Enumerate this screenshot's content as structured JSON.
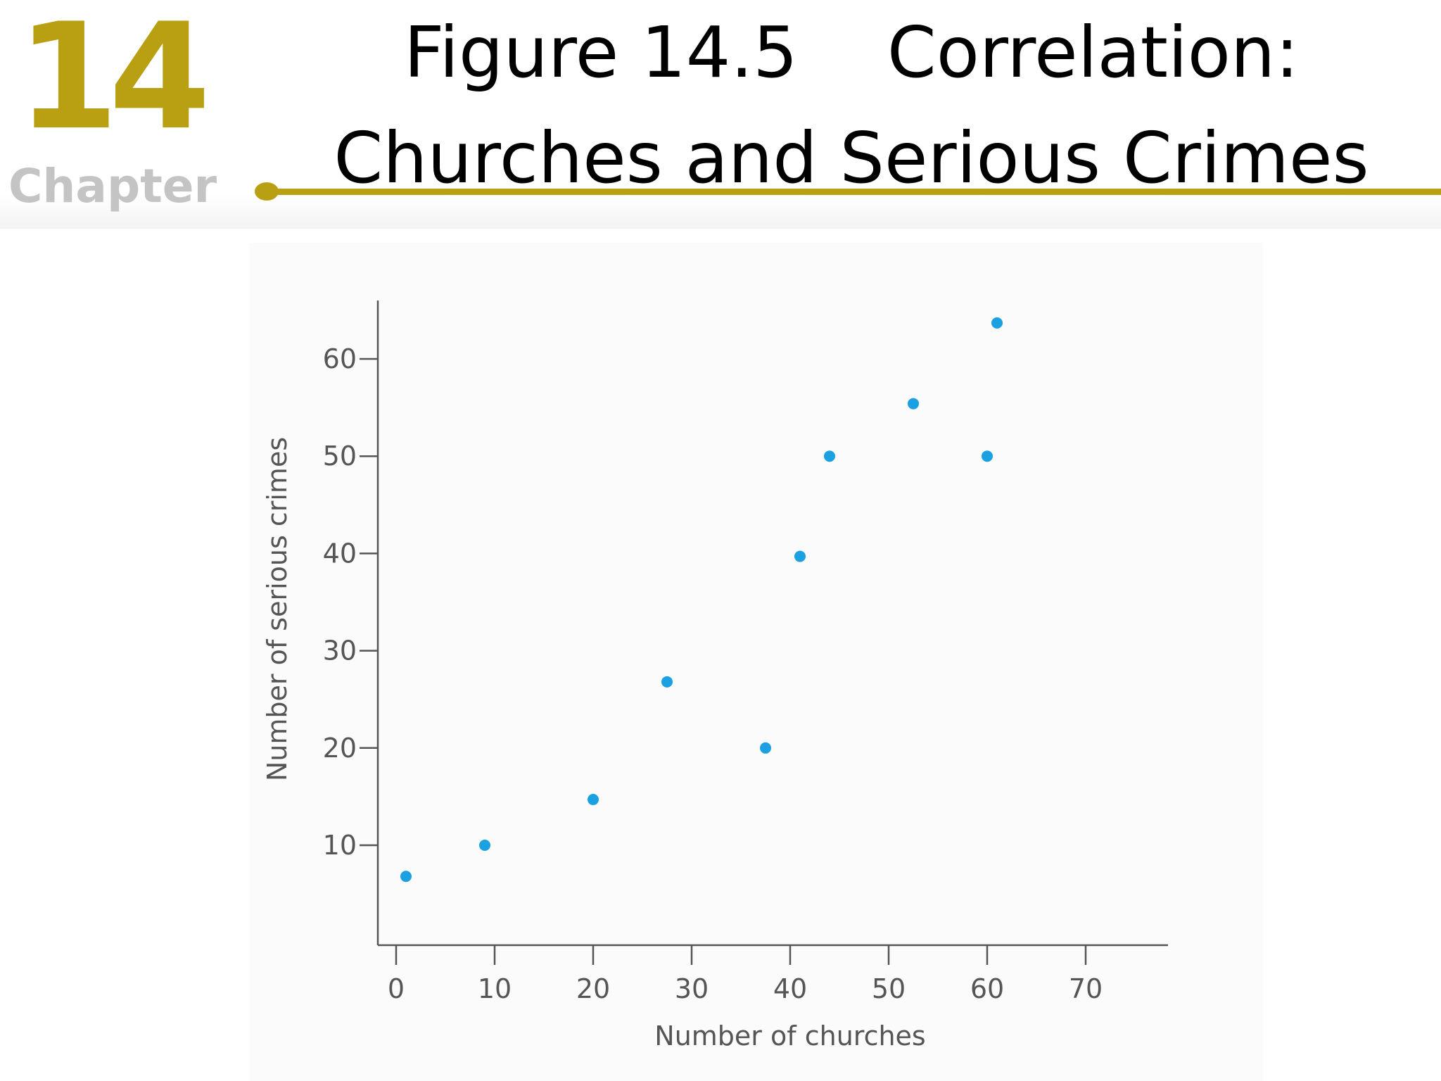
{
  "header": {
    "chapter_number": "14",
    "chapter_word": "Chapter",
    "title_line1": "Figure 14.5    Correlation:",
    "title_line2": "Churches and Serious Crimes",
    "accent_color": "#b8a012"
  },
  "chart_data": {
    "type": "scatter",
    "xlabel": "Number of churches",
    "ylabel": "Number of serious crimes",
    "xlim": [
      0,
      76
    ],
    "ylim": [
      0,
      65
    ],
    "xticks": [
      0,
      10,
      20,
      30,
      40,
      50,
      60,
      70
    ],
    "yticks": [
      10,
      20,
      30,
      40,
      50,
      60
    ],
    "grid": false,
    "point_color": "#1ba1e2",
    "points": [
      {
        "x": 1,
        "y": 6.8
      },
      {
        "x": 9,
        "y": 10
      },
      {
        "x": 20,
        "y": 14.7
      },
      {
        "x": 27.5,
        "y": 26.8
      },
      {
        "x": 37.5,
        "y": 20
      },
      {
        "x": 41,
        "y": 39.7
      },
      {
        "x": 44,
        "y": 50
      },
      {
        "x": 52.5,
        "y": 55.4
      },
      {
        "x": 60,
        "y": 50
      },
      {
        "x": 61,
        "y": 63.7
      }
    ]
  }
}
